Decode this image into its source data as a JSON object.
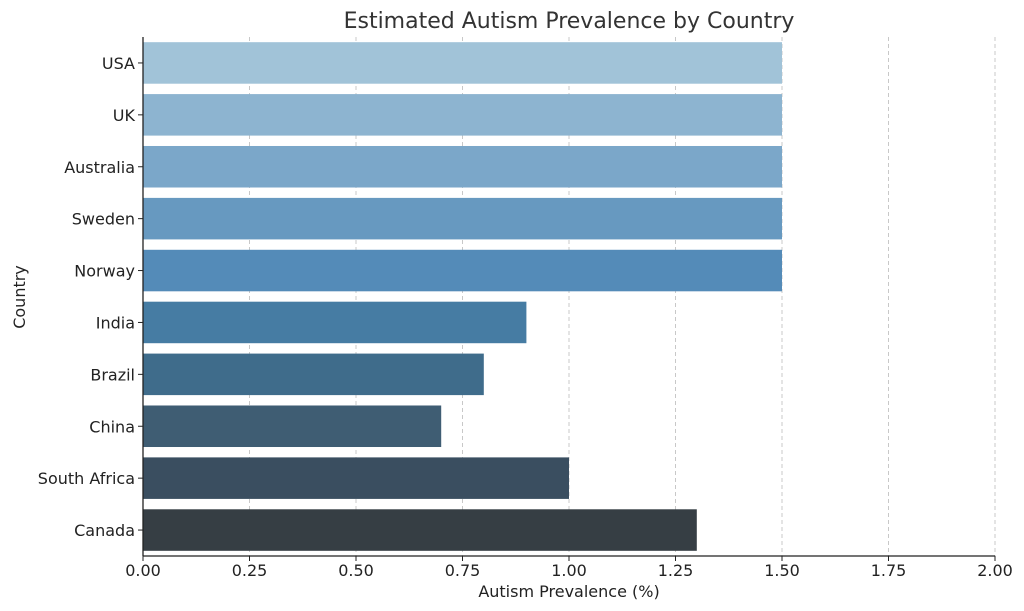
{
  "chart_data": {
    "type": "bar",
    "orientation": "horizontal",
    "title": "Estimated Autism Prevalence by Country",
    "xlabel": "Autism Prevalence (%)",
    "ylabel": "Country",
    "categories": [
      "USA",
      "UK",
      "Australia",
      "Sweden",
      "Norway",
      "India",
      "Brazil",
      "China",
      "South Africa",
      "Canada"
    ],
    "values": [
      1.5,
      1.5,
      1.5,
      1.5,
      1.5,
      0.9,
      0.8,
      0.7,
      1.0,
      1.3
    ],
    "xlim": [
      0,
      2.0
    ],
    "xticks": [
      "0.00",
      "0.25",
      "0.50",
      "0.75",
      "1.00",
      "1.25",
      "1.50",
      "1.75",
      "2.00"
    ],
    "grid": "x, dashed",
    "colors": [
      "#a1c3d8",
      "#8db4d0",
      "#7ba7c9",
      "#6799c0",
      "#548bb8",
      "#467ca3",
      "#3f6c8b",
      "#3f5d73",
      "#3a4e60",
      "#363e44"
    ]
  }
}
